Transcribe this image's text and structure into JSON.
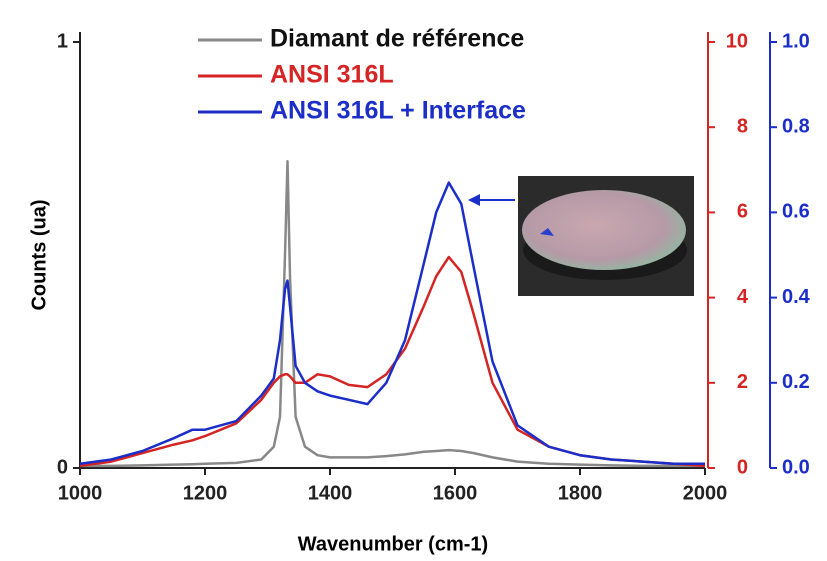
{
  "chart_data": {
    "type": "line",
    "xlabel": "Wavenumber (cm-1)",
    "ylabel": "Counts (ua)",
    "x": [
      1000,
      1050,
      1100,
      1150,
      1180,
      1200,
      1250,
      1290,
      1310,
      1320,
      1328,
      1332,
      1336,
      1345,
      1360,
      1380,
      1400,
      1430,
      1460,
      1490,
      1520,
      1550,
      1570,
      1590,
      1610,
      1630,
      1660,
      1700,
      1750,
      1800,
      1850,
      1900,
      1950,
      2000
    ],
    "xlim": [
      1000,
      2000
    ],
    "xticks": [
      1000,
      1200,
      1400,
      1600,
      1800,
      2000
    ],
    "ylim": [
      0,
      1
    ],
    "yticks": [
      0,
      1
    ],
    "y2lim": [
      0,
      10
    ],
    "y2ticks": [
      0,
      2,
      4,
      6,
      8,
      10
    ],
    "y2color": "#d42424",
    "y3lim": [
      0,
      1
    ],
    "y3ticks": [
      {
        "value": 0,
        "label": "0.0"
      },
      {
        "value": 0.2,
        "label": "0.2"
      },
      {
        "value": 0.4,
        "label": "0.4"
      },
      {
        "value": 0.6,
        "label": "0.6"
      },
      {
        "value": 0.8,
        "label": "0.8"
      },
      {
        "value": 1,
        "label": "1.0"
      }
    ],
    "y3color": "#1c2ec8",
    "series": [
      {
        "name": "Diamant de référence",
        "color": "#888888",
        "axis": "y",
        "values": [
          0.005,
          0.005,
          0.006,
          0.008,
          0.009,
          0.01,
          0.012,
          0.02,
          0.05,
          0.12,
          0.5,
          0.72,
          0.45,
          0.12,
          0.05,
          0.03,
          0.025,
          0.025,
          0.025,
          0.028,
          0.032,
          0.038,
          0.04,
          0.042,
          0.04,
          0.035,
          0.025,
          0.015,
          0.01,
          0.008,
          0.006,
          0.005,
          0.005,
          0.005
        ]
      },
      {
        "name": "ANSI 316L",
        "color": "#d42424",
        "axis": "y2",
        "values": [
          0.05,
          0.15,
          0.35,
          0.55,
          0.65,
          0.75,
          1.05,
          1.6,
          2.0,
          2.15,
          2.2,
          2.2,
          2.15,
          2.0,
          2.0,
          2.2,
          2.15,
          1.95,
          1.9,
          2.2,
          2.8,
          3.8,
          4.5,
          4.95,
          4.6,
          3.6,
          2.0,
          0.9,
          0.5,
          0.3,
          0.2,
          0.15,
          0.1,
          0.05
        ]
      },
      {
        "name": "ANSI 316L + Interface",
        "color": "#1c2ec8",
        "axis": "y3",
        "values": [
          0.01,
          0.02,
          0.04,
          0.07,
          0.09,
          0.09,
          0.11,
          0.17,
          0.21,
          0.3,
          0.42,
          0.44,
          0.38,
          0.24,
          0.2,
          0.18,
          0.17,
          0.16,
          0.15,
          0.2,
          0.3,
          0.48,
          0.6,
          0.67,
          0.62,
          0.47,
          0.25,
          0.1,
          0.05,
          0.03,
          0.02,
          0.015,
          0.01,
          0.01
        ]
      }
    ]
  }
}
